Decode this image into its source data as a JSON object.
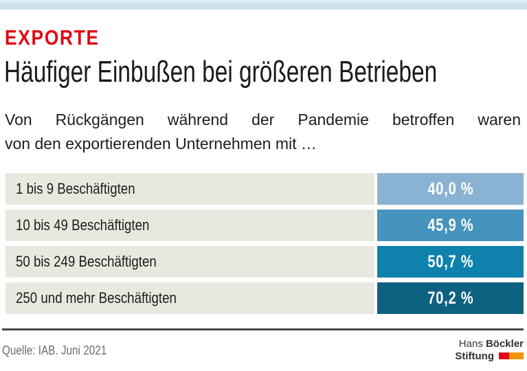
{
  "meta": {
    "kicker_color": "#e30613",
    "accent_bar_color": "#cbe2ee",
    "divider_color": "#474746"
  },
  "kicker": {
    "label": "EXPORTE"
  },
  "title": "Häufiger Einbußen bei größeren Betrieben",
  "subtitle": {
    "line1": "Von Rückgängen während der Pandemie betroffen waren",
    "line2": "von den exportierenden Unternehmen mit …"
  },
  "chart_data": {
    "type": "table",
    "title": "Häufiger Einbußen bei größeren Betrieben",
    "categories": [
      "1 bis 9 Beschäftigten",
      "10 bis 49 Beschäftigten",
      "50 bis 249 Beschäftigten",
      "250 und mehr Beschäftigten"
    ],
    "values": [
      40.0,
      45.9,
      50.7,
      70.2
    ],
    "value_labels": [
      "40,0 %",
      "45,9 %",
      "50,7 %",
      "70,2 %"
    ],
    "unit": "%",
    "bar_colors": [
      "#8ab2d2",
      "#4694bd",
      "#0f81ad",
      "#0e6180"
    ],
    "row_bg_color": "#e9e8e0",
    "value_text_color": "#ffffff",
    "legend_position": "none",
    "grid": false
  },
  "footer": {
    "source": "Quelle: IAB. Juni 2021",
    "logo": {
      "name_regular": "Hans ",
      "name_bold": "Böckler",
      "line2_bold": "Stiftung",
      "flag_red": "#e2001a",
      "flag_orange": "#f29400"
    }
  }
}
